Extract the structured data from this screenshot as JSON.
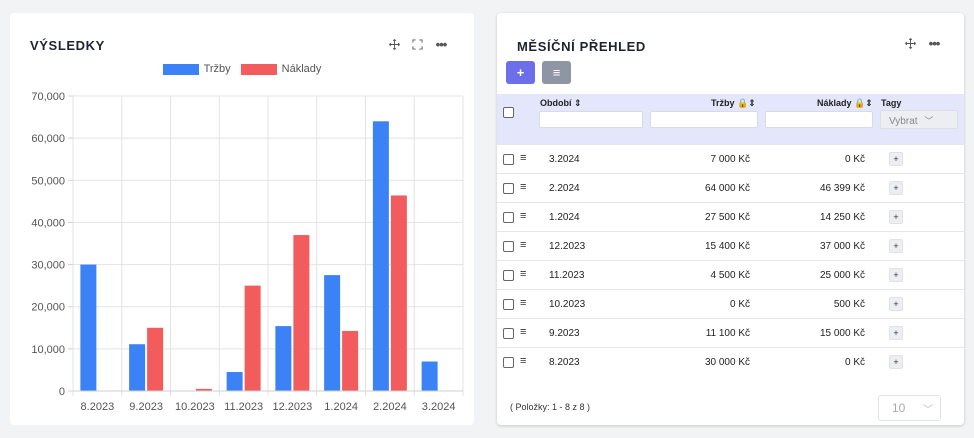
{
  "chart_card": {
    "title": "VÝSLEDKY",
    "tools": [
      "move-icon",
      "fullscreen-icon",
      "more-icon"
    ]
  },
  "chart_data": {
    "type": "bar",
    "categories": [
      "8.2023",
      "9.2023",
      "10.2023",
      "11.2023",
      "12.2023",
      "1.2024",
      "2.2024",
      "3.2024"
    ],
    "series": [
      {
        "name": "Tržby",
        "color": "#3b82f6",
        "values": [
          30000,
          11100,
          0,
          4500,
          15400,
          27500,
          64000,
          7000
        ]
      },
      {
        "name": "Náklady",
        "color": "#f25c5c",
        "values": [
          0,
          15000,
          500,
          25000,
          37000,
          14250,
          46399,
          0
        ]
      }
    ],
    "ylim": [
      0,
      70000
    ],
    "yticks": [
      "0",
      "10,000",
      "20,000",
      "30,000",
      "40,000",
      "50,000",
      "60,000",
      "70,000"
    ],
    "grid": true,
    "legend": "top-center"
  },
  "table_card": {
    "title": "MĚSÍČNÍ PŘEHLED",
    "add_label": "+",
    "menu_label": "≡",
    "columns": {
      "period": "Období",
      "revenue": "Tržby",
      "costs": "Náklady",
      "tags": "Tagy"
    },
    "tags_placeholder": "Vybrat",
    "rows": [
      {
        "period": "3.2024",
        "revenue": "7 000 Kč",
        "costs": "0 Kč"
      },
      {
        "period": "2.2024",
        "revenue": "64 000 Kč",
        "costs": "46 399 Kč"
      },
      {
        "period": "1.2024",
        "revenue": "27 500 Kč",
        "costs": "14 250 Kč"
      },
      {
        "period": "12.2023",
        "revenue": "15 400 Kč",
        "costs": "37 000 Kč"
      },
      {
        "period": "11.2023",
        "revenue": "4 500 Kč",
        "costs": "25 000 Kč"
      },
      {
        "period": "10.2023",
        "revenue": "0 Kč",
        "costs": "500 Kč"
      },
      {
        "period": "9.2023",
        "revenue": "11 100 Kč",
        "costs": "15 000 Kč"
      },
      {
        "period": "8.2023",
        "revenue": "30 000 Kč",
        "costs": "0 Kč"
      }
    ],
    "tag_add_label": "+",
    "footer_count": "( Položky: 1 - 8 z 8 )",
    "page_size": "10"
  }
}
